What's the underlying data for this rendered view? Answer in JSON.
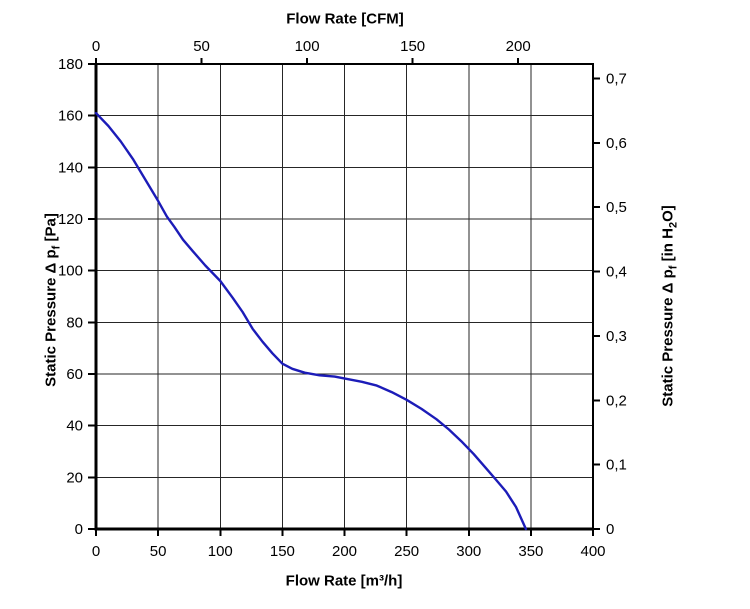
{
  "chart_data": {
    "type": "line",
    "background": "#ffffff",
    "axis_color": "#000000",
    "grid_color": "#262626",
    "grid_on": true,
    "legend": "none",
    "x_bottom": {
      "label": "Flow Rate [m³/h]",
      "unit": "m³/h",
      "min": 0,
      "max": 400,
      "ticks": [
        0,
        50,
        100,
        150,
        200,
        250,
        300,
        350,
        400
      ]
    },
    "x_top": {
      "label": "Flow Rate [CFM]",
      "unit": "CFM",
      "ticks": [
        0,
        50,
        100,
        150,
        200
      ],
      "m3h_per_cfm": 1.699
    },
    "y_left": {
      "label_pre": "Static Pressure Δ p",
      "label_sub": "f",
      "label_post": " [Pa]",
      "unit": "Pa",
      "min": 0,
      "max": 180,
      "ticks": [
        0,
        20,
        40,
        60,
        80,
        100,
        120,
        140,
        160,
        180
      ]
    },
    "y_right": {
      "label_pre": "Static Pressure Δ p",
      "label_sub": "f",
      "label_mid": " [in H",
      "label_sub2": "2",
      "label_post": "O]",
      "unit": "in H2O",
      "ticks": [
        0,
        0.1,
        0.2,
        0.3,
        0.4,
        0.5,
        0.6,
        0.7
      ],
      "tick_labels": [
        "0",
        "0,1",
        "0,2",
        "0,3",
        "0,4",
        "0,5",
        "0,6",
        "0,7"
      ],
      "pa_per_in_h2o": 249.1
    },
    "series": [
      {
        "name": "static-pressure-curve",
        "color": "#1c1cb8",
        "stroke_width": 2.4,
        "points": [
          [
            0,
            161
          ],
          [
            10,
            156
          ],
          [
            20,
            150
          ],
          [
            30,
            143
          ],
          [
            40,
            135
          ],
          [
            50,
            127
          ],
          [
            57,
            121
          ],
          [
            63,
            117
          ],
          [
            70,
            112
          ],
          [
            78,
            107.5
          ],
          [
            88,
            102
          ],
          [
            100,
            96
          ],
          [
            110,
            89.5
          ],
          [
            118,
            84
          ],
          [
            126,
            77.5
          ],
          [
            134,
            72.5
          ],
          [
            142,
            68
          ],
          [
            150,
            64
          ],
          [
            158,
            62
          ],
          [
            168,
            60.5
          ],
          [
            180,
            59.5
          ],
          [
            192,
            59
          ],
          [
            203,
            58
          ],
          [
            214,
            57
          ],
          [
            226,
            55.5
          ],
          [
            238,
            53
          ],
          [
            250,
            50
          ],
          [
            262,
            46.5
          ],
          [
            274,
            42.5
          ],
          [
            284,
            38.5
          ],
          [
            294,
            34
          ],
          [
            304,
            29
          ],
          [
            314,
            23.5
          ],
          [
            322,
            19
          ],
          [
            330,
            14.5
          ],
          [
            338,
            8.5
          ],
          [
            346,
            0
          ]
        ]
      }
    ]
  }
}
